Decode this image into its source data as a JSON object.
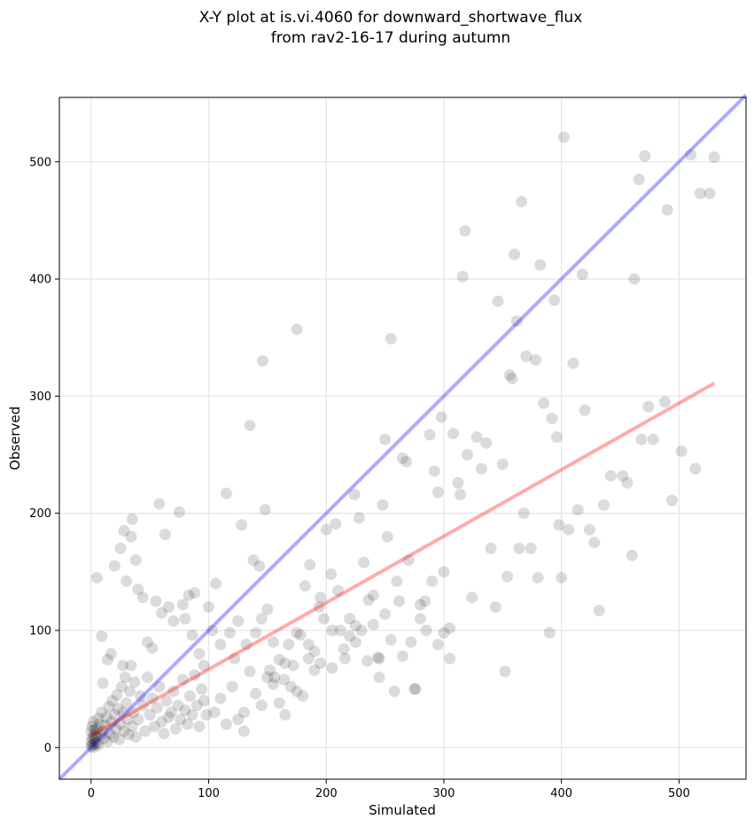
{
  "chart_data": {
    "type": "scatter",
    "title_line1": "X-Y plot at is.vi.4060 for downward_shortwave_flux",
    "title_line2": "from rav2-16-17 during autumn",
    "xlabel": "Simulated",
    "ylabel": "Observed",
    "xlim": [
      -27,
      557
    ],
    "ylim": [
      -27,
      555
    ],
    "xticks": [
      0,
      100,
      200,
      300,
      400,
      500
    ],
    "yticks": [
      0,
      100,
      200,
      300,
      400,
      500
    ],
    "grid": true,
    "point_color": "#000000",
    "identity_line": {
      "color": "#0000ff",
      "x": [
        -27,
        557
      ],
      "y": [
        -27,
        557
      ]
    },
    "fit_line": {
      "color": "#ff0000",
      "x": [
        0,
        530
      ],
      "y": [
        10,
        311
      ]
    },
    "points": [
      [
        0,
        1
      ],
      [
        1,
        2
      ],
      [
        2,
        0
      ],
      [
        3,
        3
      ],
      [
        0,
        5
      ],
      [
        1,
        8
      ],
      [
        2,
        10
      ],
      [
        3,
        6
      ],
      [
        4,
        12
      ],
      [
        5,
        4
      ],
      [
        0,
        14
      ],
      [
        1,
        18
      ],
      [
        2,
        22
      ],
      [
        3,
        15
      ],
      [
        4,
        9
      ],
      [
        6,
        2
      ],
      [
        5,
        16
      ],
      [
        7,
        20
      ],
      [
        6,
        25
      ],
      [
        8,
        11
      ],
      [
        9,
        30
      ],
      [
        10,
        14
      ],
      [
        11,
        8
      ],
      [
        12,
        19
      ],
      [
        13,
        26
      ],
      [
        14,
        5
      ],
      [
        15,
        35
      ],
      [
        16,
        12
      ],
      [
        17,
        22
      ],
      [
        18,
        40
      ],
      [
        19,
        9
      ],
      [
        20,
        28
      ],
      [
        21,
        16
      ],
      [
        22,
        45
      ],
      [
        23,
        33
      ],
      [
        24,
        7
      ],
      [
        25,
        20
      ],
      [
        26,
        52
      ],
      [
        27,
        30
      ],
      [
        28,
        14
      ],
      [
        29,
        60
      ],
      [
        30,
        38
      ],
      [
        31,
        24
      ],
      [
        32,
        11
      ],
      [
        33,
        48
      ],
      [
        34,
        70
      ],
      [
        35,
        18
      ],
      [
        36,
        30
      ],
      [
        37,
        56
      ],
      [
        38,
        9
      ],
      [
        40,
        24
      ],
      [
        42,
        44
      ],
      [
        44,
        36
      ],
      [
        46,
        14
      ],
      [
        48,
        60
      ],
      [
        50,
        28
      ],
      [
        52,
        42
      ],
      [
        54,
        18
      ],
      [
        56,
        34
      ],
      [
        58,
        52
      ],
      [
        60,
        22
      ],
      [
        62,
        12
      ],
      [
        64,
        40
      ],
      [
        66,
        26
      ],
      [
        68,
        30
      ],
      [
        70,
        48
      ],
      [
        72,
        16
      ],
      [
        74,
        36
      ],
      [
        76,
        24
      ],
      [
        78,
        58
      ],
      [
        80,
        32
      ],
      [
        82,
        20
      ],
      [
        84,
        44
      ],
      [
        86,
        28
      ],
      [
        88,
        62
      ],
      [
        90,
        36
      ],
      [
        92,
        18
      ],
      [
        94,
        50
      ],
      [
        96,
        40
      ],
      [
        98,
        28
      ],
      [
        5,
        145
      ],
      [
        9,
        95
      ],
      [
        10,
        55
      ],
      [
        14,
        75
      ],
      [
        17,
        80
      ],
      [
        20,
        155
      ],
      [
        25,
        170
      ],
      [
        27,
        70
      ],
      [
        28,
        185
      ],
      [
        30,
        142
      ],
      [
        34,
        180
      ],
      [
        35,
        195
      ],
      [
        38,
        160
      ],
      [
        40,
        135
      ],
      [
        44,
        128
      ],
      [
        48,
        90
      ],
      [
        52,
        85
      ],
      [
        55,
        125
      ],
      [
        58,
        208
      ],
      [
        60,
        115
      ],
      [
        63,
        182
      ],
      [
        66,
        120
      ],
      [
        70,
        108
      ],
      [
        75,
        201
      ],
      [
        78,
        122
      ],
      [
        80,
        110
      ],
      [
        83,
        130
      ],
      [
        86,
        96
      ],
      [
        88,
        132
      ],
      [
        92,
        80
      ],
      [
        96,
        70
      ],
      [
        100,
        120
      ],
      [
        103,
        100
      ],
      [
        106,
        140
      ],
      [
        110,
        88
      ],
      [
        115,
        217
      ],
      [
        118,
        98
      ],
      [
        122,
        76
      ],
      [
        125,
        108
      ],
      [
        128,
        190
      ],
      [
        132,
        88
      ],
      [
        135,
        275
      ],
      [
        138,
        160
      ],
      [
        140,
        98
      ],
      [
        143,
        155
      ],
      [
        146,
        330
      ],
      [
        148,
        203
      ],
      [
        150,
        118
      ],
      [
        152,
        66
      ],
      [
        156,
        60
      ],
      [
        160,
        75
      ],
      [
        164,
        58
      ],
      [
        168,
        88
      ],
      [
        172,
        70
      ],
      [
        175,
        357
      ],
      [
        178,
        96
      ],
      [
        182,
        138
      ],
      [
        186,
        156
      ],
      [
        190,
        82
      ],
      [
        194,
        120
      ],
      [
        198,
        110
      ],
      [
        200,
        186
      ],
      [
        204,
        148
      ],
      [
        208,
        191
      ],
      [
        212,
        100
      ],
      [
        216,
        76
      ],
      [
        220,
        95
      ],
      [
        224,
        216
      ],
      [
        228,
        196
      ],
      [
        232,
        158
      ],
      [
        236,
        126
      ],
      [
        240,
        105
      ],
      [
        244,
        77
      ],
      [
        248,
        207
      ],
      [
        250,
        263
      ],
      [
        252,
        180
      ],
      [
        255,
        349
      ],
      [
        258,
        48
      ],
      [
        262,
        125
      ],
      [
        265,
        247
      ],
      [
        268,
        244
      ],
      [
        272,
        90
      ],
      [
        276,
        50
      ],
      [
        280,
        110
      ],
      [
        284,
        125
      ],
      [
        288,
        267
      ],
      [
        292,
        236
      ],
      [
        295,
        218
      ],
      [
        298,
        282
      ],
      [
        300,
        150
      ],
      [
        305,
        102
      ],
      [
        308,
        268
      ],
      [
        312,
        226
      ],
      [
        314,
        216
      ],
      [
        316,
        402
      ],
      [
        318,
        441
      ],
      [
        320,
        250
      ],
      [
        324,
        128
      ],
      [
        328,
        265
      ],
      [
        332,
        238
      ],
      [
        336,
        260
      ],
      [
        340,
        170
      ],
      [
        344,
        120
      ],
      [
        346,
        381
      ],
      [
        350,
        242
      ],
      [
        352,
        65
      ],
      [
        354,
        146
      ],
      [
        356,
        318
      ],
      [
        358,
        315
      ],
      [
        360,
        421
      ],
      [
        362,
        364
      ],
      [
        364,
        170
      ],
      [
        366,
        466
      ],
      [
        368,
        200
      ],
      [
        370,
        334
      ],
      [
        374,
        170
      ],
      [
        378,
        331
      ],
      [
        380,
        145
      ],
      [
        382,
        412
      ],
      [
        385,
        294
      ],
      [
        390,
        98
      ],
      [
        392,
        281
      ],
      [
        394,
        382
      ],
      [
        396,
        265
      ],
      [
        398,
        190
      ],
      [
        400,
        145
      ],
      [
        402,
        521
      ],
      [
        406,
        186
      ],
      [
        410,
        328
      ],
      [
        414,
        203
      ],
      [
        418,
        404
      ],
      [
        420,
        288
      ],
      [
        424,
        186
      ],
      [
        428,
        175
      ],
      [
        432,
        117
      ],
      [
        436,
        207
      ],
      [
        442,
        232
      ],
      [
        452,
        232
      ],
      [
        456,
        226
      ],
      [
        460,
        164
      ],
      [
        462,
        400
      ],
      [
        466,
        485
      ],
      [
        468,
        263
      ],
      [
        471,
        505
      ],
      [
        474,
        291
      ],
      [
        478,
        263
      ],
      [
        488,
        295
      ],
      [
        490,
        459
      ],
      [
        494,
        211
      ],
      [
        502,
        253
      ],
      [
        510,
        506
      ],
      [
        514,
        238
      ],
      [
        518,
        473
      ],
      [
        526,
        473
      ],
      [
        530,
        504
      ],
      [
        110,
        42
      ],
      [
        120,
        52
      ],
      [
        130,
        30
      ],
      [
        140,
        46
      ],
      [
        150,
        60
      ],
      [
        160,
        38
      ],
      [
        170,
        52
      ],
      [
        180,
        44
      ],
      [
        190,
        66
      ],
      [
        130,
        14
      ],
      [
        115,
        20
      ],
      [
        125,
        24
      ],
      [
        105,
        30
      ],
      [
        165,
        28
      ],
      [
        175,
        48
      ],
      [
        145,
        36
      ],
      [
        155,
        54
      ],
      [
        185,
        88
      ],
      [
        195,
        72
      ],
      [
        205,
        68
      ],
      [
        215,
        84
      ],
      [
        225,
        90
      ],
      [
        235,
        74
      ],
      [
        245,
        60
      ],
      [
        255,
        92
      ],
      [
        265,
        78
      ],
      [
        275,
        50
      ],
      [
        285,
        100
      ],
      [
        295,
        88
      ],
      [
        305,
        76
      ],
      [
        210,
        134
      ],
      [
        220,
        110
      ],
      [
        230,
        100
      ],
      [
        240,
        130
      ],
      [
        250,
        114
      ],
      [
        260,
        142
      ],
      [
        270,
        160
      ],
      [
        280,
        122
      ],
      [
        290,
        142
      ],
      [
        300,
        98
      ],
      [
        135,
        65
      ],
      [
        145,
        110
      ],
      [
        155,
        90
      ],
      [
        165,
        72
      ],
      [
        175,
        98
      ],
      [
        185,
        76
      ],
      [
        195,
        128
      ],
      [
        205,
        100
      ],
      [
        225,
        104
      ],
      [
        245,
        76
      ]
    ]
  }
}
